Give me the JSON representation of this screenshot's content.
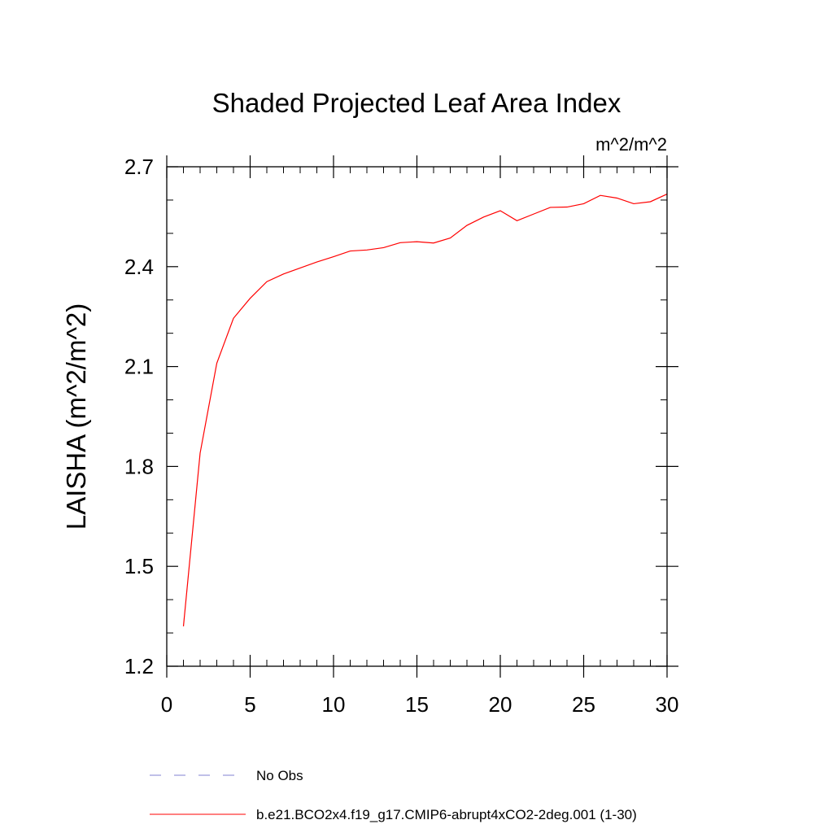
{
  "chart_data": {
    "type": "line",
    "title": "Shaded Projected Leaf Area Index",
    "units_label": "m^2/m^2",
    "xlabel": "",
    "ylabel": "LAISHA  (m^2/m^2)",
    "xlim": [
      0,
      30
    ],
    "ylim": [
      1.2,
      2.7
    ],
    "x_ticks": [
      0,
      5,
      10,
      15,
      20,
      25,
      30
    ],
    "x_tick_labels": [
      "0",
      "5",
      "10",
      "15",
      "20",
      "25",
      "30"
    ],
    "x_minor_step": 1,
    "y_ticks": [
      1.2,
      1.5,
      1.8,
      2.1,
      2.4,
      2.7
    ],
    "y_tick_labels": [
      "1.2",
      "1.5",
      "1.8",
      "2.1",
      "2.4",
      "2.7"
    ],
    "y_minor_step": 0.1,
    "grid": false,
    "legend_position": "bottom",
    "series": [
      {
        "name": "b.e21.BCO2x4.f19_g17.CMIP6-abrupt4xCO2-2deg.001 (1-30)",
        "color": "#ff0000",
        "dash": "solid",
        "x": [
          1,
          2,
          3,
          4,
          5,
          6,
          7,
          8,
          9,
          10,
          11,
          12,
          13,
          14,
          15,
          16,
          17,
          18,
          19,
          20,
          21,
          22,
          23,
          24,
          25,
          26,
          27,
          28,
          29,
          30
        ],
        "values": [
          1.32,
          1.84,
          2.11,
          2.245,
          2.305,
          2.355,
          2.378,
          2.396,
          2.414,
          2.43,
          2.447,
          2.45,
          2.457,
          2.472,
          2.475,
          2.471,
          2.486,
          2.524,
          2.549,
          2.568,
          2.538,
          2.558,
          2.578,
          2.579,
          2.589,
          2.614,
          2.606,
          2.589,
          2.595,
          2.618
        ]
      }
    ],
    "legend_entries": [
      {
        "label": "No Obs",
        "color": "#8080d0",
        "dash": "dashed"
      },
      {
        "label": "b.e21.BCO2x4.f19_g17.CMIP6-abrupt4xCO2-2deg.001 (1-30)",
        "color": "#ff0000",
        "dash": "solid"
      }
    ]
  }
}
